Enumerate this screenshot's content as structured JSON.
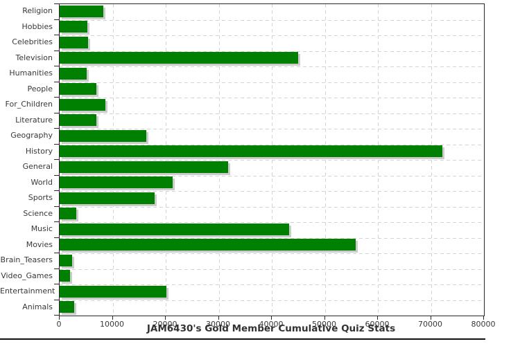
{
  "chart_data": {
    "type": "bar",
    "orientation": "horizontal",
    "title": "JAM6430's Gold Member Cumulative Quiz Stats",
    "categories": [
      "Religion",
      "Hobbies",
      "Celebrities",
      "Television",
      "Humanities",
      "People",
      "For_Children",
      "Literature",
      "Geography",
      "History",
      "General",
      "World",
      "Sports",
      "Science",
      "Music",
      "Movies",
      "Brain_Teasers",
      "Video_Games",
      "Entertainment",
      "Animals"
    ],
    "values": [
      8200,
      5200,
      5400,
      45000,
      5100,
      6900,
      8600,
      6900,
      16300,
      72200,
      31800,
      21300,
      17900,
      3200,
      43300,
      55800,
      2400,
      1900,
      20100,
      2700
    ],
    "xlabel": "",
    "ylabel": "",
    "xlim": [
      0,
      80000
    ],
    "x_ticks": [
      0,
      10000,
      20000,
      30000,
      40000,
      50000,
      60000,
      70000,
      80000
    ],
    "grid": "dashed",
    "legend": "none",
    "colors": {
      "bar_fill": "#008000",
      "bar_shadow": "#cccccc",
      "grid_line": "#d4d4d4",
      "axis_line": "#262626",
      "text": "#383838"
    }
  }
}
